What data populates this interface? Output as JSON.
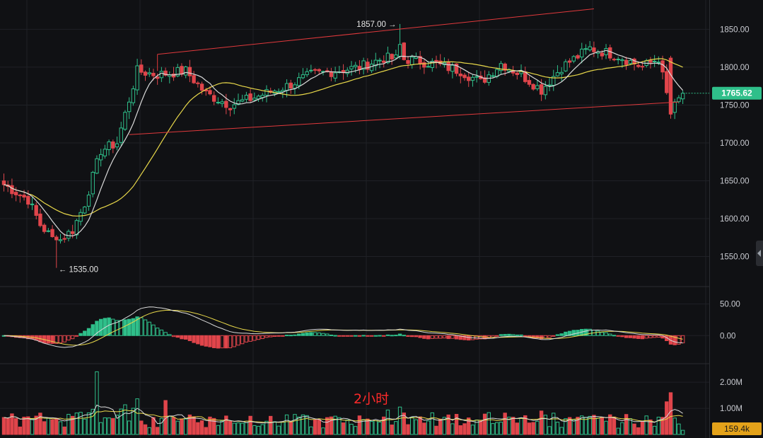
{
  "timeframe_label": "2小时",
  "colors": {
    "background": "#101114",
    "grid": "#1f2126",
    "up": "#2fbf8a",
    "down": "#e0454b",
    "ma_fast": "#d9d9d9",
    "ma_slow": "#e8d84a",
    "trendline": "#e0393c",
    "price_badge": "#2fbf8a",
    "volume_badge": "#e3a21a"
  },
  "chart_data": [
    {
      "type": "candlestick",
      "name": "price",
      "ylim": [
        1515,
        1870
      ],
      "yticks": [
        "1850.00",
        "1800.00",
        "1750.00",
        "1700.00",
        "1650.00",
        "1600.00",
        "1550.00"
      ],
      "ytick_values": [
        1850,
        1800,
        1750,
        1700,
        1650,
        1600,
        1550
      ],
      "last_price": "1765.62",
      "last_price_value": 1765.62,
      "annotations": [
        {
          "label": "1857.00",
          "value": 1857,
          "bar": 98
        },
        {
          "label": "1535.00",
          "value": 1535,
          "bar": 13
        }
      ],
      "trendlines": [
        {
          "from": {
            "bar": 38,
            "value": 1817
          },
          "to": {
            "bar": 146,
            "value": 1877
          }
        },
        {
          "from": {
            "bar": 31,
            "value": 1711
          },
          "to": {
            "bar": 167,
            "value": 1754
          }
        }
      ],
      "moving_averages_visible": [
        "fast",
        "slow"
      ]
    },
    {
      "type": "macd",
      "name": "macd",
      "ylim": [
        -40,
        72
      ],
      "yticks": [
        "50.00",
        "0.00"
      ],
      "ytick_values": [
        50,
        0
      ]
    },
    {
      "type": "bar",
      "name": "volume",
      "ylim": [
        0,
        2.6
      ],
      "yticks": [
        "2.00M",
        "1.00M"
      ],
      "ytick_values": [
        2.0,
        1.0
      ],
      "last_volume": "159.4k",
      "last_volume_value": 0.1594,
      "unit": "M"
    }
  ]
}
